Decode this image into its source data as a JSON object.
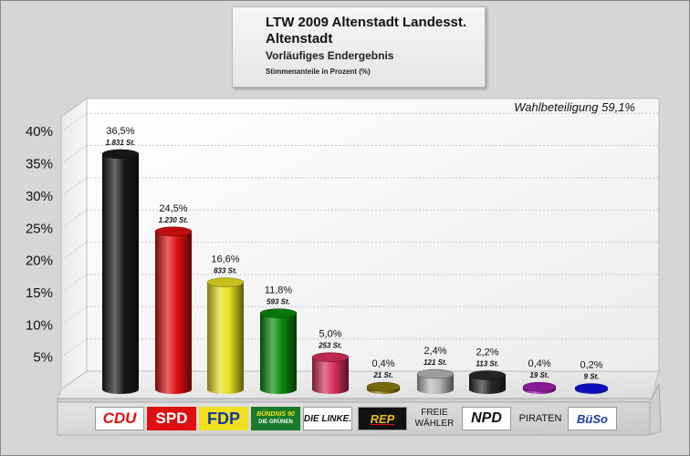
{
  "header": {
    "title": "LTW 2009 Altenstadt Landesst. Altenstadt",
    "subtitle": "Vorläufiges Endergebnis",
    "subsubtitle": "Stimmenanteile in Prozent (%)"
  },
  "turnout": "Wahlbeteiligung 59,1%",
  "chart_data": {
    "type": "bar",
    "title": "LTW 2009 Altenstadt Landesst. Altenstadt",
    "xlabel": "",
    "ylabel": "",
    "ylim": [
      0,
      40
    ],
    "yticks": [
      "5%",
      "10%",
      "15%",
      "20%",
      "25%",
      "30%",
      "35%",
      "40%"
    ],
    "grid": true,
    "categories": [
      "CDU",
      "SPD",
      "FDP",
      "BÜNDNIS 90 DIE GRÜNEN",
      "DIE LINKE.",
      "REP",
      "FREIE WÄHLER",
      "NPD",
      "PIRATEN",
      "BüSo"
    ],
    "values": [
      36.5,
      24.5,
      16.6,
      11.8,
      5.0,
      0.4,
      2.4,
      2.2,
      0.4,
      0.2
    ],
    "value_labels": [
      "36,5%",
      "24,5%",
      "16,6%",
      "11,8%",
      "5,0%",
      "0,4%",
      "2,4%",
      "2,2%",
      "0,4%",
      "0,2%"
    ],
    "vote_labels": [
      "1.831 St.",
      "1.230 St.",
      "833 St.",
      "593 St.",
      "253 St.",
      "21 St.",
      "121 St.",
      "113 St.",
      "19 St.",
      "9 St."
    ],
    "colors": [
      "#1a1a1a",
      "#e01010",
      "#e8e020",
      "#0a8a0a",
      "#d8305a",
      "#8a7a10",
      "#b8b8b8",
      "#2a2a2a",
      "#a020b0",
      "#1010e0"
    ]
  },
  "logos": {
    "cdu": "CDU",
    "spd": "SPD",
    "fdp": "FDP",
    "gruene_top": "BÜNDNIS 90",
    "gruene_bottom": "DIE GRÜNEN",
    "linke": "DIE LINKE.",
    "rep": "REP",
    "fw_top": "FREIE",
    "fw_bottom": "WÄHLER",
    "npd": "NPD",
    "piraten": "PIRATEN",
    "bueso": "BüSo"
  }
}
